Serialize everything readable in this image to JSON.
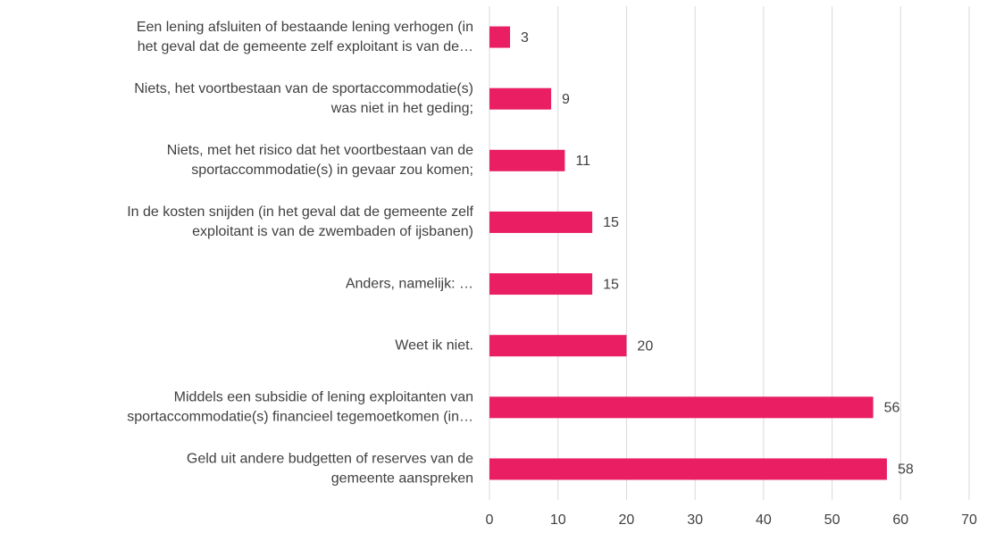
{
  "chart_data": {
    "type": "barh",
    "categories": [
      [
        "Een lening afsluiten of bestaande lening verhogen (in",
        "het geval dat de gemeente zelf exploitant is van de…"
      ],
      [
        "Niets, het voortbestaan van de sportaccommodatie(s)",
        "was niet in het geding;"
      ],
      [
        "Niets, met het risico dat het voortbestaan van de",
        "sportaccommodatie(s) in gevaar zou komen;"
      ],
      [
        "In de kosten snijden (in het geval dat de gemeente zelf",
        "exploitant is van de zwembaden of ijsbanen)"
      ],
      [
        "Anders, namelijk: …"
      ],
      [
        "Weet ik niet."
      ],
      [
        "Middels een subsidie of lening exploitanten van",
        "sportaccommodatie(s) financieel tegemoetkomen (in…"
      ],
      [
        "Geld uit andere budgetten of reserves van de",
        "gemeente aanspreken"
      ]
    ],
    "values": [
      3,
      9,
      11,
      15,
      15,
      20,
      56,
      58
    ],
    "color": "#e91e63",
    "xlim": [
      0,
      70
    ],
    "xticks": [
      0,
      10,
      20,
      30,
      40,
      50,
      60,
      70
    ],
    "grid": true
  }
}
